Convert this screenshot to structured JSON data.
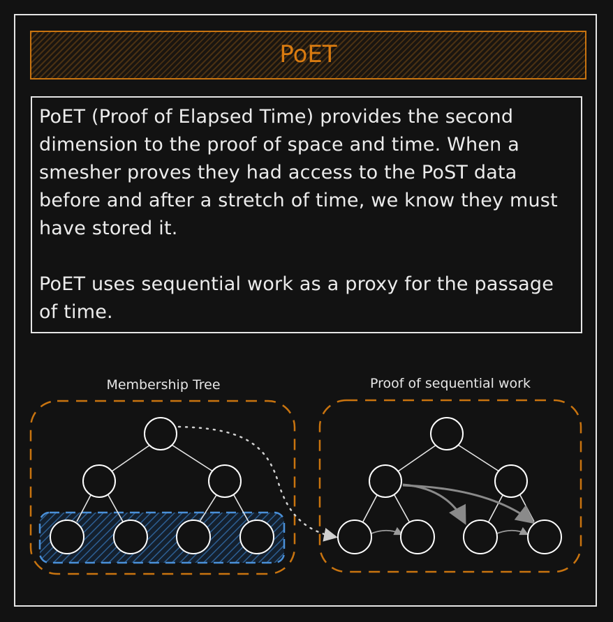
{
  "title": "PoET",
  "description": {
    "paragraph1": "PoET (Proof of Elapsed Time) provides the second dimension to the proof of space and time. When a smesher proves they had access to the PoST data before and after a stretch of time, we know they must have stored it.",
    "paragraph2": "PoET uses sequential work as a proxy for the passage of time."
  },
  "left_diagram": {
    "label": "Membership Tree"
  },
  "right_diagram": {
    "label": "Proof of sequential work"
  },
  "colors": {
    "accent_orange": "#c9740f",
    "highlight_blue": "#4a90d9",
    "stroke_white": "#e6e6e6",
    "background": "#121212"
  }
}
